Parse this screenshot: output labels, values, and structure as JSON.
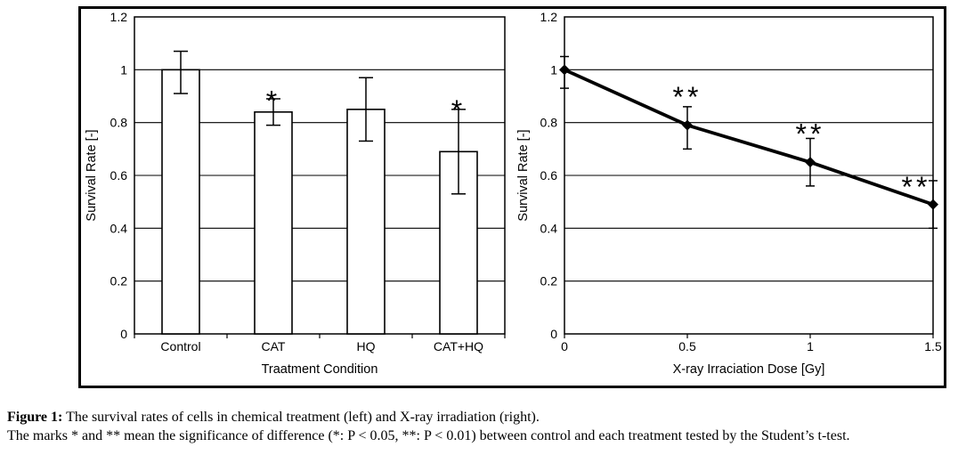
{
  "colors": {
    "ink": "#000000",
    "background": "#ffffff"
  },
  "caption": {
    "label": "Figure 1:",
    "line1": " The survival rates of cells in chemical treatment (left) and X-ray irradiation (right).",
    "line2": "The marks * and ** mean the significance of difference (*: P < 0.05, **: P < 0.01) between control and each treatment tested by the Student’s t-test."
  },
  "chart_data": [
    {
      "type": "bar",
      "title": "",
      "categories": [
        "Control",
        "CAT",
        "HQ",
        "CAT+HQ"
      ],
      "values": [
        1.0,
        0.84,
        0.85,
        0.69
      ],
      "error_low": [
        0.91,
        0.79,
        0.73,
        0.53
      ],
      "error_high": [
        1.07,
        0.89,
        0.97,
        0.85
      ],
      "significance": [
        {
          "category_index": 1,
          "text": "*",
          "y": 0.905
        },
        {
          "category_index": 3,
          "text": "*",
          "y": 0.87
        }
      ],
      "xlabel": "Traatment Condition",
      "ylabel": "Survival Rate [-]",
      "ylim": [
        0,
        1.2
      ],
      "yticks": [
        0,
        0.2,
        0.4,
        0.6,
        0.8,
        1,
        1.2
      ],
      "ytick_labels": [
        "0",
        "0.2",
        "0.4",
        "0.6",
        "0.8",
        "1",
        "1.2"
      ],
      "grid": "horizontal",
      "legend": "none",
      "bar_fill": "#ffffff",
      "bar_stroke": "#000000"
    },
    {
      "type": "line",
      "title": "",
      "x": [
        0,
        0.5,
        1,
        1.5
      ],
      "values": [
        1.0,
        0.79,
        0.65,
        0.49
      ],
      "error_low": [
        0.93,
        0.7,
        0.56,
        0.4
      ],
      "error_high": [
        1.05,
        0.86,
        0.74,
        0.58
      ],
      "significance": [
        {
          "x": 0.5,
          "text": "**",
          "y": 0.92,
          "dx": 0
        },
        {
          "x": 1,
          "text": "**",
          "y": 0.78,
          "dx": 0
        },
        {
          "x": 1.5,
          "text": "**",
          "y": 0.58,
          "dx": -19
        }
      ],
      "xlabel": "X-ray Irraciation Dose [Gy]",
      "ylabel": "Survival Rate [-]",
      "xlim": [
        0,
        1.5
      ],
      "ylim": [
        0,
        1.2
      ],
      "xticks": [
        0,
        0.5,
        1,
        1.5
      ],
      "xtick_labels": [
        "0",
        "0.5",
        "1",
        "1.5"
      ],
      "yticks": [
        0,
        0.2,
        0.4,
        0.6,
        0.8,
        1,
        1.2
      ],
      "ytick_labels": [
        "0",
        "0.2",
        "0.4",
        "0.6",
        "0.8",
        "1",
        "1.2"
      ],
      "grid": "horizontal",
      "legend": "none",
      "marker": "diamond",
      "line_color": "#000000"
    }
  ]
}
